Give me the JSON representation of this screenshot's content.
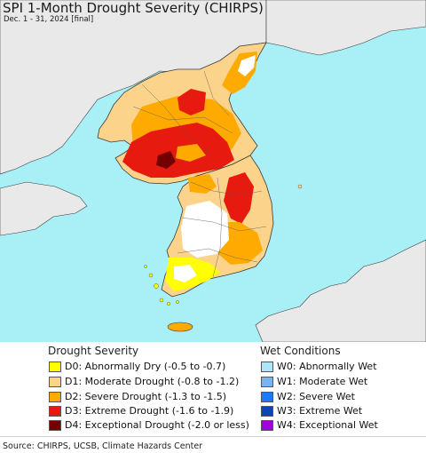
{
  "header": {
    "title": "SPI 1-Month Drought Severity (CHIRPS)",
    "subtitle": "Dec. 1 - 31, 2024 [final]"
  },
  "colors": {
    "sea": "#a8f0f6",
    "land_neighbor": "#e9e9e9",
    "border": "#3c3c3c",
    "normal": "#ffffff"
  },
  "legend": {
    "drought": {
      "heading": "Drought Severity",
      "items": [
        {
          "label": "D0: Abnormally Dry (-0.5 to -0.7)",
          "color": "#ffff00"
        },
        {
          "label": "D1: Moderate Drought (-0.8 to -1.2)",
          "color": "#fcd38a"
        },
        {
          "label": "D2: Severe Drought (-1.3 to -1.5)",
          "color": "#ffaa00"
        },
        {
          "label": "D3: Extreme Drought (-1.6 to -1.9)",
          "color": "#e61a0f"
        },
        {
          "label": "D4: Exceptional Drought (-2.0 or less)",
          "color": "#730000"
        }
      ]
    },
    "wet": {
      "heading": "Wet Conditions",
      "items": [
        {
          "label": "W0: Abnormally Wet",
          "color": "#aee6f7"
        },
        {
          "label": "W1: Moderate Wet",
          "color": "#78b4ee"
        },
        {
          "label": "W2: Severe Wet",
          "color": "#1e78ff"
        },
        {
          "label": "W3: Extreme Wet",
          "color": "#0a46b4"
        },
        {
          "label": "W4: Exceptional Wet",
          "color": "#a000dc"
        }
      ]
    }
  },
  "footer": {
    "source": "Source: CHIRPS, UCSB, Climate Hazards Center"
  }
}
